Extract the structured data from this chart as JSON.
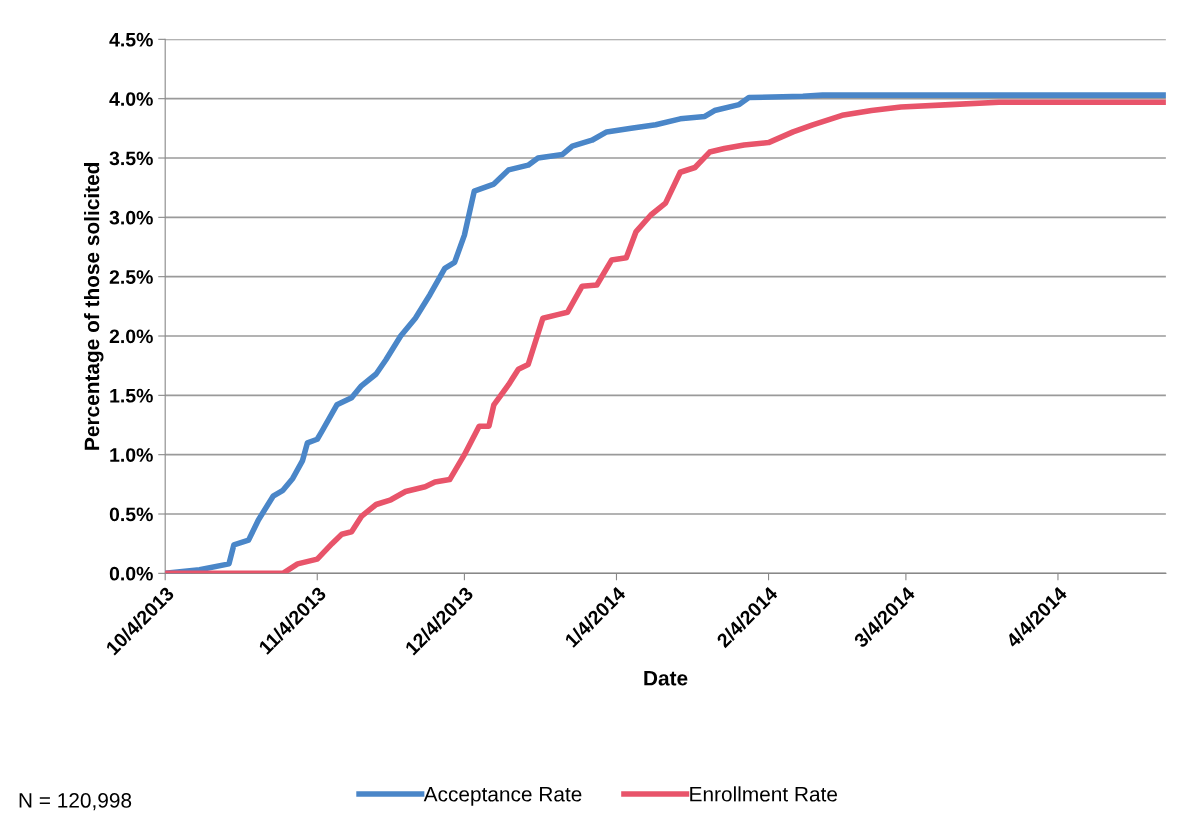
{
  "chart_data": {
    "type": "line",
    "xlabel": "Date",
    "ylabel": "Percentage of those solicited",
    "xlim": [
      "2013-10-04",
      "2014-04-26"
    ],
    "xticks": [
      {
        "value": "2013-10-04",
        "label": "10/4/2013"
      },
      {
        "value": "2013-11-04",
        "label": "11/4/2013"
      },
      {
        "value": "2013-12-04",
        "label": "12/4/2013"
      },
      {
        "value": "2014-01-04",
        "label": "1/4/2014"
      },
      {
        "value": "2014-02-04",
        "label": "2/4/2014"
      },
      {
        "value": "2014-03-04",
        "label": "3/4/2014"
      },
      {
        "value": "2014-04-04",
        "label": "4/4/2014"
      }
    ],
    "ylim": [
      0,
      4.5
    ],
    "yticks": [
      {
        "value": 0,
        "label": "0.0%"
      },
      {
        "value": 0.5,
        "label": "0.5%"
      },
      {
        "value": 1,
        "label": "1.0%"
      },
      {
        "value": 1.5,
        "label": "1.5%"
      },
      {
        "value": 2,
        "label": "2.0%"
      },
      {
        "value": 2.5,
        "label": "2.5%"
      },
      {
        "value": 3,
        "label": "3.0%"
      },
      {
        "value": 3.5,
        "label": "3.5%"
      },
      {
        "value": 4,
        "label": "4.0%"
      },
      {
        "value": 4.5,
        "label": "4.5%"
      }
    ],
    "grid": "y",
    "legend": "bottom",
    "marker": "none",
    "line_style": "solid",
    "annotations": [
      "N = 120,998"
    ],
    "series": [
      {
        "name": "Acceptance Rate",
        "color": "#4a86c8",
        "x": [
          "2013-10-04",
          "2013-10-11",
          "2013-10-17",
          "2013-10-18",
          "2013-10-21",
          "2013-10-23",
          "2013-10-26",
          "2013-10-28",
          "2013-10-30",
          "2013-11-01",
          "2013-11-02",
          "2013-11-04",
          "2013-11-05",
          "2013-11-08",
          "2013-11-11",
          "2013-11-13",
          "2013-11-16",
          "2013-11-18",
          "2013-11-21",
          "2013-11-24",
          "2013-11-27",
          "2013-11-30",
          "2013-12-02",
          "2013-12-04",
          "2013-12-06",
          "2013-12-10",
          "2013-12-13",
          "2013-12-17",
          "2013-12-19",
          "2013-12-24",
          "2013-12-26",
          "2013-12-30",
          "2014-01-02",
          "2014-01-07",
          "2014-01-12",
          "2014-01-17",
          "2014-01-22",
          "2014-01-24",
          "2014-01-29",
          "2014-01-31",
          "2014-02-11",
          "2014-02-15",
          "2014-04-26"
        ],
        "values": [
          0,
          0.03,
          0.08,
          0.24,
          0.28,
          0.45,
          0.65,
          0.7,
          0.8,
          0.95,
          1.1,
          1.13,
          1.2,
          1.42,
          1.48,
          1.58,
          1.68,
          1.8,
          2.0,
          2.15,
          2.35,
          2.57,
          2.62,
          2.85,
          3.22,
          3.28,
          3.4,
          3.44,
          3.5,
          3.53,
          3.6,
          3.65,
          3.72,
          3.75,
          3.78,
          3.83,
          3.85,
          3.9,
          3.95,
          4.01,
          4.02,
          4.03,
          4.03
        ]
      },
      {
        "name": "Enrollment Rate",
        "color": "#e8546a",
        "x": [
          "2013-10-04",
          "2013-10-28",
          "2013-10-31",
          "2013-11-04",
          "2013-11-07",
          "2013-11-09",
          "2013-11-11",
          "2013-11-13",
          "2013-11-16",
          "2013-11-19",
          "2013-11-22",
          "2013-11-26",
          "2013-11-28",
          "2013-12-01",
          "2013-12-04",
          "2013-12-07",
          "2013-12-09",
          "2013-12-10",
          "2013-12-13",
          "2013-12-15",
          "2013-12-17",
          "2013-12-20",
          "2013-12-23",
          "2013-12-25",
          "2013-12-28",
          "2013-12-31",
          "2014-01-03",
          "2014-01-06",
          "2014-01-08",
          "2014-01-11",
          "2014-01-14",
          "2014-01-17",
          "2014-01-20",
          "2014-01-23",
          "2014-01-26",
          "2014-01-30",
          "2014-02-04",
          "2014-02-09",
          "2014-02-13",
          "2014-02-19",
          "2014-02-25",
          "2014-03-03",
          "2014-03-13",
          "2014-03-23",
          "2014-04-26"
        ],
        "values": [
          0,
          0,
          0.08,
          0.12,
          0.25,
          0.33,
          0.35,
          0.48,
          0.58,
          0.62,
          0.69,
          0.73,
          0.77,
          0.79,
          1.0,
          1.24,
          1.24,
          1.42,
          1.59,
          1.72,
          1.76,
          2.15,
          2.18,
          2.2,
          2.42,
          2.43,
          2.64,
          2.66,
          2.88,
          3.02,
          3.12,
          3.38,
          3.42,
          3.55,
          3.58,
          3.61,
          3.63,
          3.72,
          3.78,
          3.86,
          3.9,
          3.93,
          3.95,
          3.97,
          3.97
        ]
      }
    ]
  }
}
